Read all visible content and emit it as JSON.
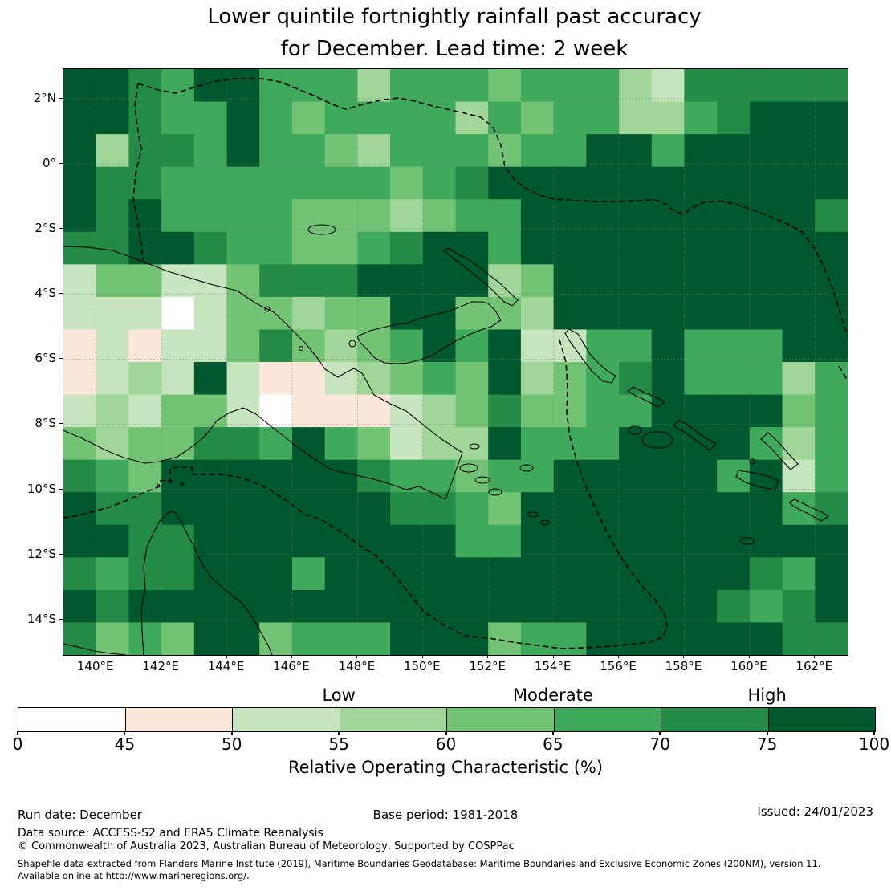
{
  "title": {
    "line1": "Lower quintile fortnightly rainfall past accuracy",
    "line2": "for December. Lead time: 2 week"
  },
  "axes": {
    "y_ticks": [
      "2°N",
      "0°",
      "2°S",
      "4°S",
      "6°S",
      "8°S",
      "10°S",
      "12°S",
      "14°S"
    ],
    "x_ticks": [
      "140°E",
      "142°E",
      "144°E",
      "146°E",
      "148°E",
      "150°E",
      "152°E",
      "154°E",
      "156°E",
      "158°E",
      "160°E",
      "162°E"
    ]
  },
  "colorbar": {
    "title": "Relative Operating Characteristic (%)",
    "tick_labels": [
      "0",
      "45",
      "50",
      "55",
      "60",
      "65",
      "70",
      "75",
      "100"
    ],
    "boundaries": [
      0,
      45,
      50,
      55,
      60,
      65,
      70,
      75,
      100
    ],
    "segment_colors": [
      "#ffffff",
      "#fbe6da",
      "#c6e5bf",
      "#a0d799",
      "#73c375",
      "#3fa95c",
      "#238b45",
      "#00592e"
    ],
    "region_labels": [
      {
        "label": "Low",
        "at_boundary_index": 3
      },
      {
        "label": "Moderate",
        "at_boundary_index": 5
      },
      {
        "label": "High",
        "at_boundary_index": 7
      }
    ]
  },
  "footer": {
    "run_date": "Run date: December",
    "base_period": "Base period: 1981-2018",
    "issued": "Issued: 24/01/2023",
    "data_source": "Data source: ACCESS-S2 and ERA5 Climate Reanalysis",
    "copyright": "© Commonwealth of Australia 2023, Australian Bureau of Meteorology, Supported by COSPPac",
    "shapefile_line1": "Shapefile data extracted from Flanders Marine Institute (2019), Maritime Boundaries Geodatabase: Maritime Boundaries and Exclusive Economic Zones (200NM), version 11.",
    "shapefile_line2": "Available online at http://www.marineregions.org/."
  },
  "chart_data": {
    "type": "heatmap",
    "title": "Lower quintile fortnightly rainfall past accuracy for December. Lead time: 2 week",
    "value_name": "Relative Operating Characteristic (%)",
    "lon_min": 139,
    "lon_max": 163,
    "lat_max_north": 3,
    "lat_min_south": -15,
    "cell_size_deg": 1,
    "grid_cols": 24,
    "grid_rows": 18,
    "class_boundaries": [
      0,
      45,
      50,
      55,
      60,
      65,
      70,
      75,
      100
    ],
    "palette": [
      "#ffffff",
      "#fbe6da",
      "#c6e5bf",
      "#a0d799",
      "#73c375",
      "#3fa95c",
      "#238b45",
      "#00592e"
    ],
    "rows_note": "18 rows from 3N..15S (top to bottom), 24 cols from 139E..163E; each char = palette/class index (0=0-45%,1=45-50,2=50-55,3=55-60,4=60-65,5=65-70,6=70-75,7=75-100)",
    "rows": [
      "776577555355545553266666",
      "776557545555354553356777",
      "736657554355545577577777",
      "766555555545677777777777",
      "767555544434557777777776",
      "667765544567757777777777",
      "244224666777734777777777",
      "222024434477443777777777",
      "121224643457572255755577",
      "123272112345473456755535",
      "232442011123464455777745",
      "434466575423375557777535",
      "654777777655455777775725",
      "766777777766547777777756",
      "776677777777557777777777",
      "656677757777777777777657",
      "767777777777777777776567",
      "645477455577745577777766"
    ],
    "overlays": [
      "coastlines of New Guinea, New Britain, New Ireland, Bougainville, Solomon Islands, Cape York (Australia)",
      "dashed EEZ maritime boundaries",
      "dotted 2-degree graticule"
    ],
    "legend_position": "bottom",
    "grid_on": true
  }
}
